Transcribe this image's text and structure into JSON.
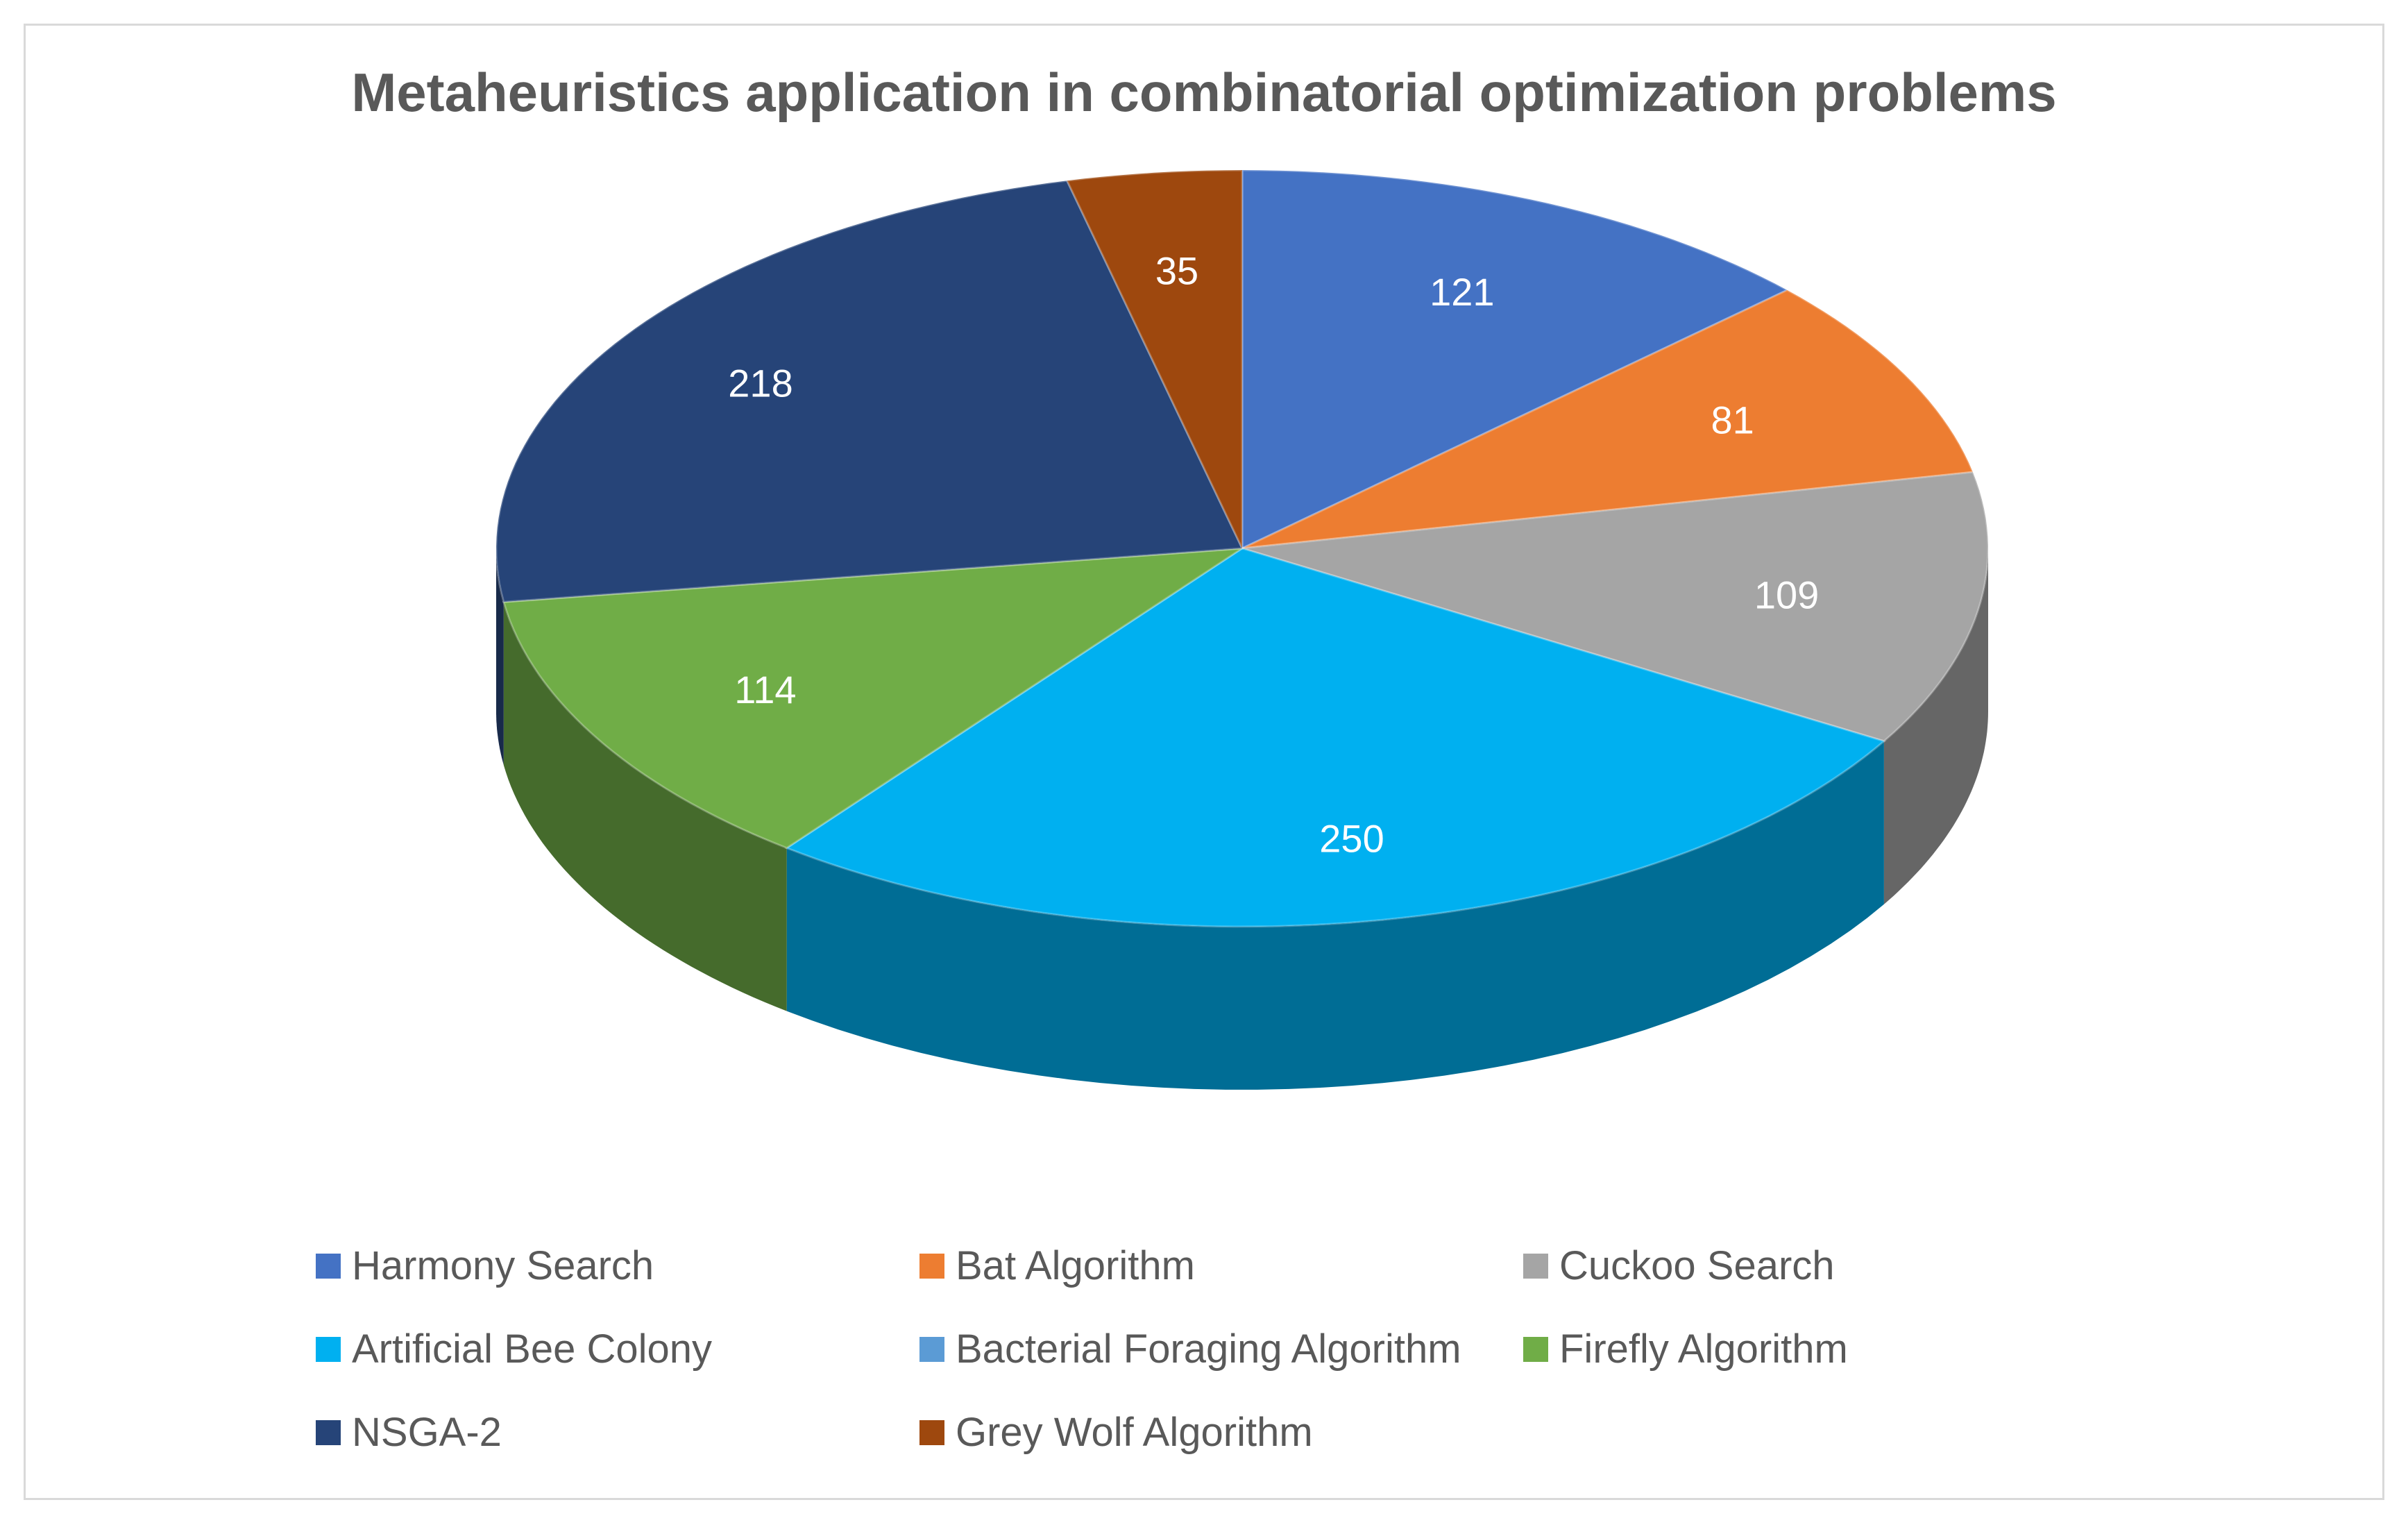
{
  "chart_data": {
    "type": "pie",
    "title": "Metaheuristics application in combinatorial optimization problems",
    "slices": [
      {
        "label": "Harmony Search",
        "value": 121,
        "color": "#4472C4"
      },
      {
        "label": "Bat Algorithm",
        "value": 81,
        "color": "#ED7D31"
      },
      {
        "label": "Cuckoo Search",
        "value": 109,
        "color": "#A5A5A5"
      },
      {
        "label": "Artificial Bee Colony",
        "value": 250,
        "color": "#00B0F0"
      },
      {
        "label": "Bacterial Foraging Algorithm",
        "value": 0,
        "color": "#5B9BD5"
      },
      {
        "label": "Firefly Algorithm",
        "value": 114,
        "color": "#70AD47"
      },
      {
        "label": "NSGA-2",
        "value": 218,
        "color": "#264478"
      },
      {
        "label": "Grey Wolf Algorithm",
        "value": 35,
        "color": "#9E480E"
      }
    ],
    "legend_position": "bottom",
    "style": "3d-pie"
  }
}
